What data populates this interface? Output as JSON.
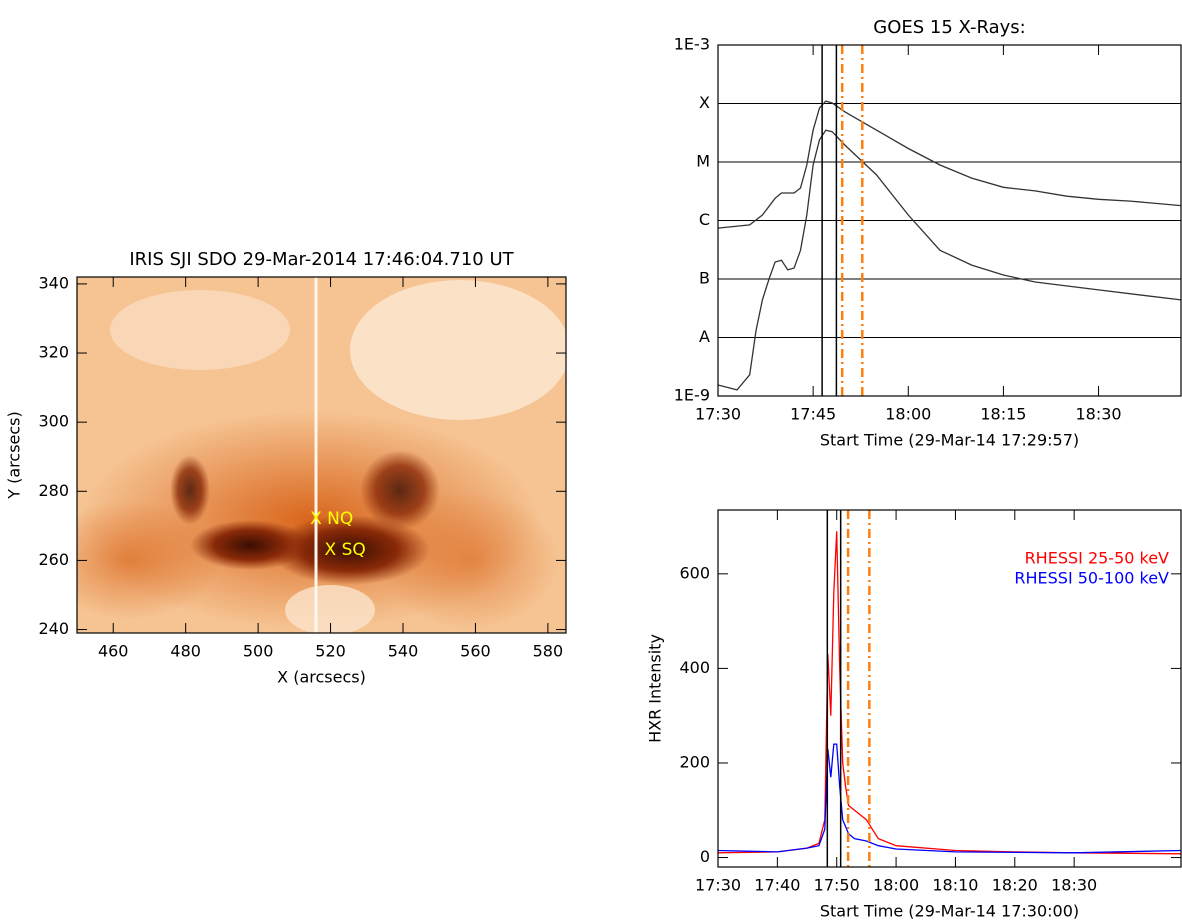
{
  "chart_data": [
    {
      "type": "image",
      "title": "IRIS SJI SDO 29-Mar-2014 17:46:04.710 UT",
      "xlabel": "X (arcsecs)",
      "ylabel": "Y (arcsecs)",
      "xlim": [
        450,
        585
      ],
      "ylim": [
        239,
        342
      ],
      "xticks": [
        460,
        480,
        500,
        520,
        540,
        560,
        580
      ],
      "yticks": [
        240,
        260,
        280,
        300,
        320,
        340
      ],
      "annotations": [
        {
          "text": "X  NQ",
          "x": 516,
          "y": 272,
          "color": "#ffff00"
        },
        {
          "text": "X  SQ",
          "x": 520,
          "y": 263,
          "color": "#ffff00"
        }
      ]
    },
    {
      "type": "line",
      "title": "GOES 15 X-Rays:",
      "xlabel": "Start Time (29-Mar-14 17:29:57)",
      "xlim": [
        "17:30",
        "18:43"
      ],
      "xticks": [
        "17:30",
        "17:45",
        "18:00",
        "18:15",
        "18:30"
      ],
      "ylog": true,
      "ylim": [
        1e-09,
        0.001
      ],
      "yticks": [
        {
          "value": 1e-09,
          "label": "1E-9"
        },
        {
          "value": 1e-08,
          "label": "A"
        },
        {
          "value": 1e-07,
          "label": "B"
        },
        {
          "value": 1e-06,
          "label": "C"
        },
        {
          "value": 1e-05,
          "label": "M"
        },
        {
          "value": 0.0001,
          "label": "X"
        },
        {
          "value": 0.001,
          "label": "1E-3"
        }
      ],
      "grid": true,
      "series": [
        {
          "color": "#333333",
          "x": [
            "17:30",
            "17:35",
            "17:37",
            "17:39",
            "17:40",
            "17:42",
            "17:43",
            "17:44",
            "17:45",
            "17:46",
            "17:47",
            "17:48",
            "17:50",
            "17:55",
            "18:00",
            "18:05",
            "18:10",
            "18:15",
            "18:20",
            "18:25",
            "18:30",
            "18:35",
            "18:43"
          ],
          "values": [
            7.4e-07,
            8.4e-07,
            1.24e-06,
            2.4e-06,
            2.95e-06,
            2.95e-06,
            3.6e-06,
            8.9e-06,
            3.5e-05,
            8.4e-05,
            0.00011,
            0.000102,
            7.2e-05,
            3.5e-05,
            1.7e-05,
            8.9e-06,
            5.3e-06,
            3.7e-06,
            3.2e-06,
            2.6e-06,
            2.3e-06,
            2.15e-06,
            1.8e-06
          ]
        },
        {
          "color": "#333333",
          "x": [
            "17:30",
            "17:33",
            "17:35",
            "17:36",
            "17:37",
            "17:38",
            "17:39",
            "17:40",
            "17:41",
            "17:42",
            "17:43",
            "17:44",
            "17:45",
            "17:46",
            "17:47",
            "17:48",
            "17:50",
            "17:55",
            "18:00",
            "18:05",
            "18:10",
            "18:15",
            "18:20",
            "18:30",
            "18:43"
          ],
          "values": [
            1.54e-09,
            1.27e-09,
            2.3e-09,
            1.34e-08,
            4.4e-08,
            9.6e-08,
            1.95e-07,
            2.1e-07,
            1.43e-07,
            1.54e-07,
            3.1e-07,
            1.24e-06,
            8.9e-06,
            2.4e-05,
            3.5e-05,
            3.3e-05,
            1.95e-05,
            6e-06,
            1.24e-06,
            3.1e-07,
            1.73e-07,
            1.17e-07,
            8.9e-08,
            6.5e-08,
            4.4e-08
          ]
        }
      ],
      "markers": [
        {
          "x": "17:46:25",
          "color": "#000000",
          "style": "solid"
        },
        {
          "x": "17:48:40",
          "color": "#000000",
          "style": "solid"
        },
        {
          "x": "17:49:35",
          "color": "#ff7f0e",
          "style": "dashdot"
        },
        {
          "x": "17:52:45",
          "color": "#ff7f0e",
          "style": "dashdot"
        }
      ]
    },
    {
      "type": "line",
      "xlabel": "Start Time (29-Mar-14 17:30:00)",
      "ylabel": "HXR Intensity",
      "xlim": [
        "17:30",
        "18:48"
      ],
      "xticks": [
        "17:30",
        "17:40",
        "17:50",
        "18:00",
        "18:10",
        "18:20",
        "18:30"
      ],
      "ylim": [
        -20,
        735
      ],
      "yticks": [
        0,
        200,
        400,
        600
      ],
      "legend": "upper right",
      "series": [
        {
          "name": "RHESSI 25-50 keV",
          "color": "#ff0000",
          "x": [
            "17:30",
            "17:40",
            "17:45",
            "17:47",
            "17:48",
            "17:48:30",
            "17:49",
            "17:49:30",
            "17:50",
            "17:50:30",
            "17:51",
            "17:51:30",
            "17:52",
            "17:53",
            "17:54",
            "17:55",
            "17:56",
            "17:57",
            "18:00",
            "18:10",
            "18:20",
            "18:30",
            "18:48"
          ],
          "values": [
            10,
            12,
            20,
            30,
            80,
            430,
            300,
            560,
            690,
            400,
            200,
            150,
            110,
            100,
            90,
            80,
            60,
            40,
            25,
            15,
            12,
            10,
            8
          ]
        },
        {
          "name": "RHESSI 50-100 keV",
          "color": "#0000ff",
          "x": [
            "17:30",
            "17:40",
            "17:45",
            "17:47",
            "17:48",
            "17:48:30",
            "17:49",
            "17:49:30",
            "17:50",
            "17:50:30",
            "17:51",
            "17:52",
            "17:53",
            "17:55",
            "17:57",
            "18:00",
            "18:10",
            "18:30",
            "18:48"
          ],
          "values": [
            15,
            12,
            20,
            25,
            60,
            230,
            170,
            240,
            240,
            150,
            80,
            50,
            40,
            35,
            25,
            18,
            12,
            10,
            15
          ]
        }
      ],
      "markers": [
        {
          "x": "17:48:25",
          "color": "#000000",
          "style": "solid"
        },
        {
          "x": "17:50:40",
          "color": "#000000",
          "style": "solid"
        },
        {
          "x": "17:51:55",
          "color": "#ff7f0e",
          "style": "dashdot"
        },
        {
          "x": "17:55:30",
          "color": "#ff7f0e",
          "style": "dashdot"
        }
      ]
    }
  ]
}
